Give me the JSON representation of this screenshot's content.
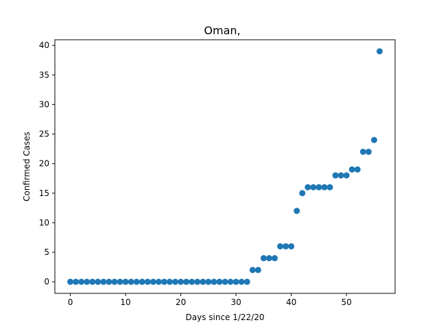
{
  "chart_data": {
    "type": "scatter",
    "title": "Oman,",
    "xlabel": "Days since 1/22/20",
    "ylabel": "Confirmed Cases",
    "xlim": [
      -2.8,
      58.8
    ],
    "ylim": [
      -1.95,
      40.95
    ],
    "xticks": [
      0,
      10,
      20,
      30,
      40,
      50
    ],
    "yticks": [
      0,
      5,
      10,
      15,
      20,
      25,
      30,
      35,
      40
    ],
    "grid": false,
    "marker_color": "#1f77b4",
    "x": [
      0,
      1,
      2,
      3,
      4,
      5,
      6,
      7,
      8,
      9,
      10,
      11,
      12,
      13,
      14,
      15,
      16,
      17,
      18,
      19,
      20,
      21,
      22,
      23,
      24,
      25,
      26,
      27,
      28,
      29,
      30,
      31,
      32,
      33,
      34,
      35,
      36,
      37,
      38,
      39,
      40,
      41,
      42,
      43,
      44,
      45,
      46,
      47,
      48,
      49,
      50,
      51,
      52,
      53,
      54,
      55,
      56
    ],
    "y": [
      0,
      0,
      0,
      0,
      0,
      0,
      0,
      0,
      0,
      0,
      0,
      0,
      0,
      0,
      0,
      0,
      0,
      0,
      0,
      0,
      0,
      0,
      0,
      0,
      0,
      0,
      0,
      0,
      0,
      0,
      0,
      0,
      0,
      2,
      2,
      4,
      4,
      4,
      6,
      6,
      6,
      12,
      15,
      16,
      16,
      16,
      16,
      16,
      18,
      18,
      18,
      19,
      19,
      22,
      22,
      24,
      39
    ]
  }
}
